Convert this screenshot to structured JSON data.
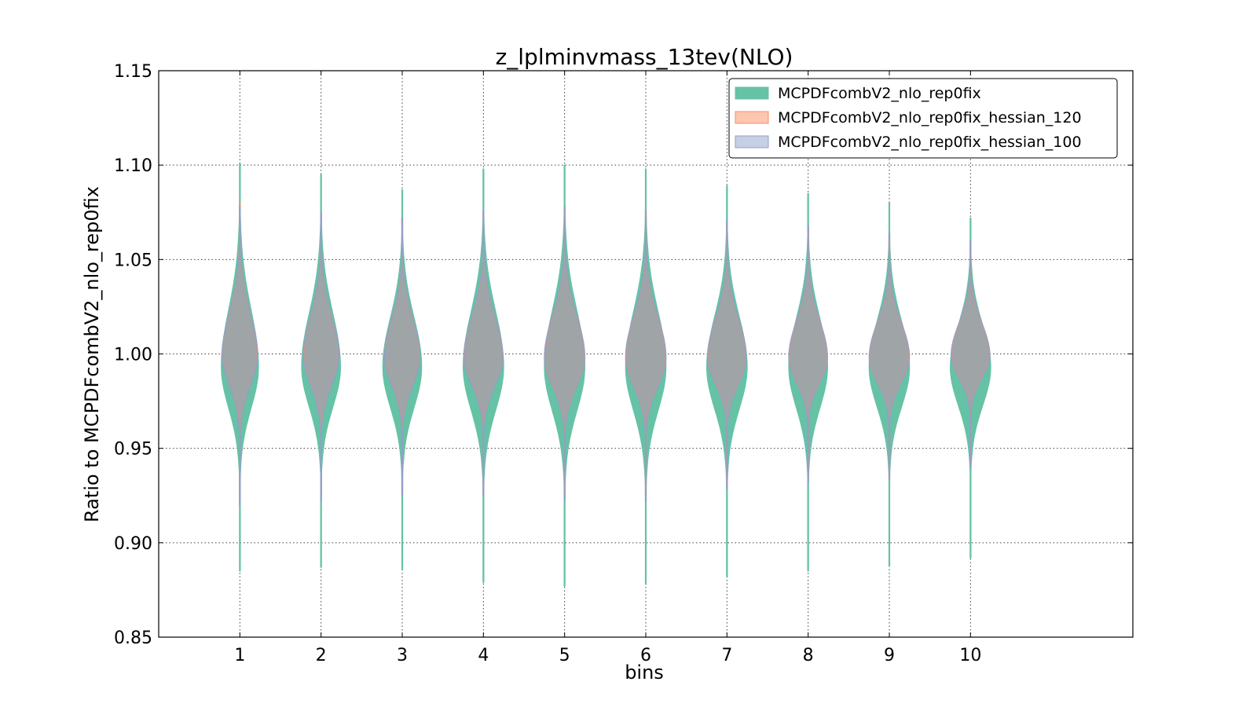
{
  "chart_data": {
    "type": "violin",
    "title": "z_lplminvmass_13tev(NLO)",
    "xlabel": "bins",
    "ylabel": "Ratio to MCPDFcombV2_nlo_rep0fix",
    "xlim": [
      0,
      12
    ],
    "ylim": [
      0.85,
      1.15
    ],
    "xticks": [
      1,
      2,
      3,
      4,
      5,
      6,
      7,
      8,
      9,
      10
    ],
    "xtick_labels": [
      "1",
      "2",
      "3",
      "4",
      "5",
      "6",
      "7",
      "8",
      "9",
      "10"
    ],
    "yticks": [
      0.85,
      0.9,
      0.95,
      1.0,
      1.05,
      1.1,
      1.15
    ],
    "ytick_labels": [
      "0.85",
      "0.90",
      "0.95",
      "1.00",
      "1.05",
      "1.10",
      "1.15"
    ],
    "grid": true,
    "legend_position": "top-right",
    "series": [
      {
        "name": "MCPDFcombV2_nlo_rep0fix",
        "color": "#66c2a5",
        "edge": "#66c2a5",
        "opacity": 1.0,
        "violins": [
          {
            "bin": 1,
            "min": 0.885,
            "max": 1.101,
            "center": 0.993,
            "width": 0.23
          },
          {
            "bin": 2,
            "min": 0.887,
            "max": 1.095,
            "center": 0.993,
            "width": 0.24
          },
          {
            "bin": 3,
            "min": 0.886,
            "max": 1.087,
            "center": 0.993,
            "width": 0.24
          },
          {
            "bin": 4,
            "min": 0.879,
            "max": 1.098,
            "center": 0.993,
            "width": 0.25
          },
          {
            "bin": 5,
            "min": 0.877,
            "max": 1.1,
            "center": 0.993,
            "width": 0.25
          },
          {
            "bin": 6,
            "min": 0.878,
            "max": 1.098,
            "center": 0.993,
            "width": 0.25
          },
          {
            "bin": 7,
            "min": 0.882,
            "max": 1.089,
            "center": 0.993,
            "width": 0.25
          },
          {
            "bin": 8,
            "min": 0.885,
            "max": 1.085,
            "center": 0.993,
            "width": 0.24
          },
          {
            "bin": 9,
            "min": 0.888,
            "max": 1.08,
            "center": 0.993,
            "width": 0.25
          },
          {
            "bin": 10,
            "min": 0.892,
            "max": 1.072,
            "center": 0.993,
            "width": 0.25
          }
        ]
      },
      {
        "name": "MCPDFcombV2_nlo_rep0fix_hessian_120",
        "color": "#fc8d62",
        "edge": "#fc8d62",
        "opacity": 0.5,
        "violins": [
          {
            "bin": 1,
            "min": 0.925,
            "max": 1.08,
            "center": 1.0,
            "width": 0.21
          },
          {
            "bin": 2,
            "min": 0.925,
            "max": 1.075,
            "center": 1.0,
            "width": 0.21
          },
          {
            "bin": 3,
            "min": 0.928,
            "max": 1.072,
            "center": 0.999,
            "width": 0.21
          },
          {
            "bin": 4,
            "min": 0.928,
            "max": 1.075,
            "center": 0.999,
            "width": 0.23
          },
          {
            "bin": 5,
            "min": 0.925,
            "max": 1.078,
            "center": 0.998,
            "width": 0.24
          },
          {
            "bin": 6,
            "min": 0.925,
            "max": 1.075,
            "center": 0.998,
            "width": 0.24
          },
          {
            "bin": 7,
            "min": 0.93,
            "max": 1.07,
            "center": 0.998,
            "width": 0.23
          },
          {
            "bin": 8,
            "min": 0.935,
            "max": 1.067,
            "center": 0.998,
            "width": 0.23
          },
          {
            "bin": 9,
            "min": 0.935,
            "max": 1.063,
            "center": 0.998,
            "width": 0.24
          },
          {
            "bin": 10,
            "min": 0.942,
            "max": 1.058,
            "center": 0.999,
            "width": 0.23
          }
        ]
      },
      {
        "name": "MCPDFcombV2_nlo_rep0fix_hessian_100",
        "color": "#8da0cb",
        "edge": "#8da0cb",
        "opacity": 0.5,
        "violins": [
          {
            "bin": 1,
            "min": 0.92,
            "max": 1.078,
            "center": 0.999,
            "width": 0.22
          },
          {
            "bin": 2,
            "min": 0.922,
            "max": 1.075,
            "center": 0.999,
            "width": 0.22
          },
          {
            "bin": 3,
            "min": 0.925,
            "max": 1.072,
            "center": 0.998,
            "width": 0.22
          },
          {
            "bin": 4,
            "min": 0.925,
            "max": 1.076,
            "center": 0.998,
            "width": 0.24
          },
          {
            "bin": 5,
            "min": 0.922,
            "max": 1.078,
            "center": 0.998,
            "width": 0.25
          },
          {
            "bin": 6,
            "min": 0.922,
            "max": 1.076,
            "center": 0.998,
            "width": 0.25
          },
          {
            "bin": 7,
            "min": 0.928,
            "max": 1.071,
            "center": 0.998,
            "width": 0.24
          },
          {
            "bin": 8,
            "min": 0.932,
            "max": 1.068,
            "center": 0.998,
            "width": 0.24
          },
          {
            "bin": 9,
            "min": 0.933,
            "max": 1.064,
            "center": 0.998,
            "width": 0.25
          },
          {
            "bin": 10,
            "min": 0.94,
            "max": 1.06,
            "center": 0.999,
            "width": 0.24
          }
        ]
      }
    ]
  }
}
